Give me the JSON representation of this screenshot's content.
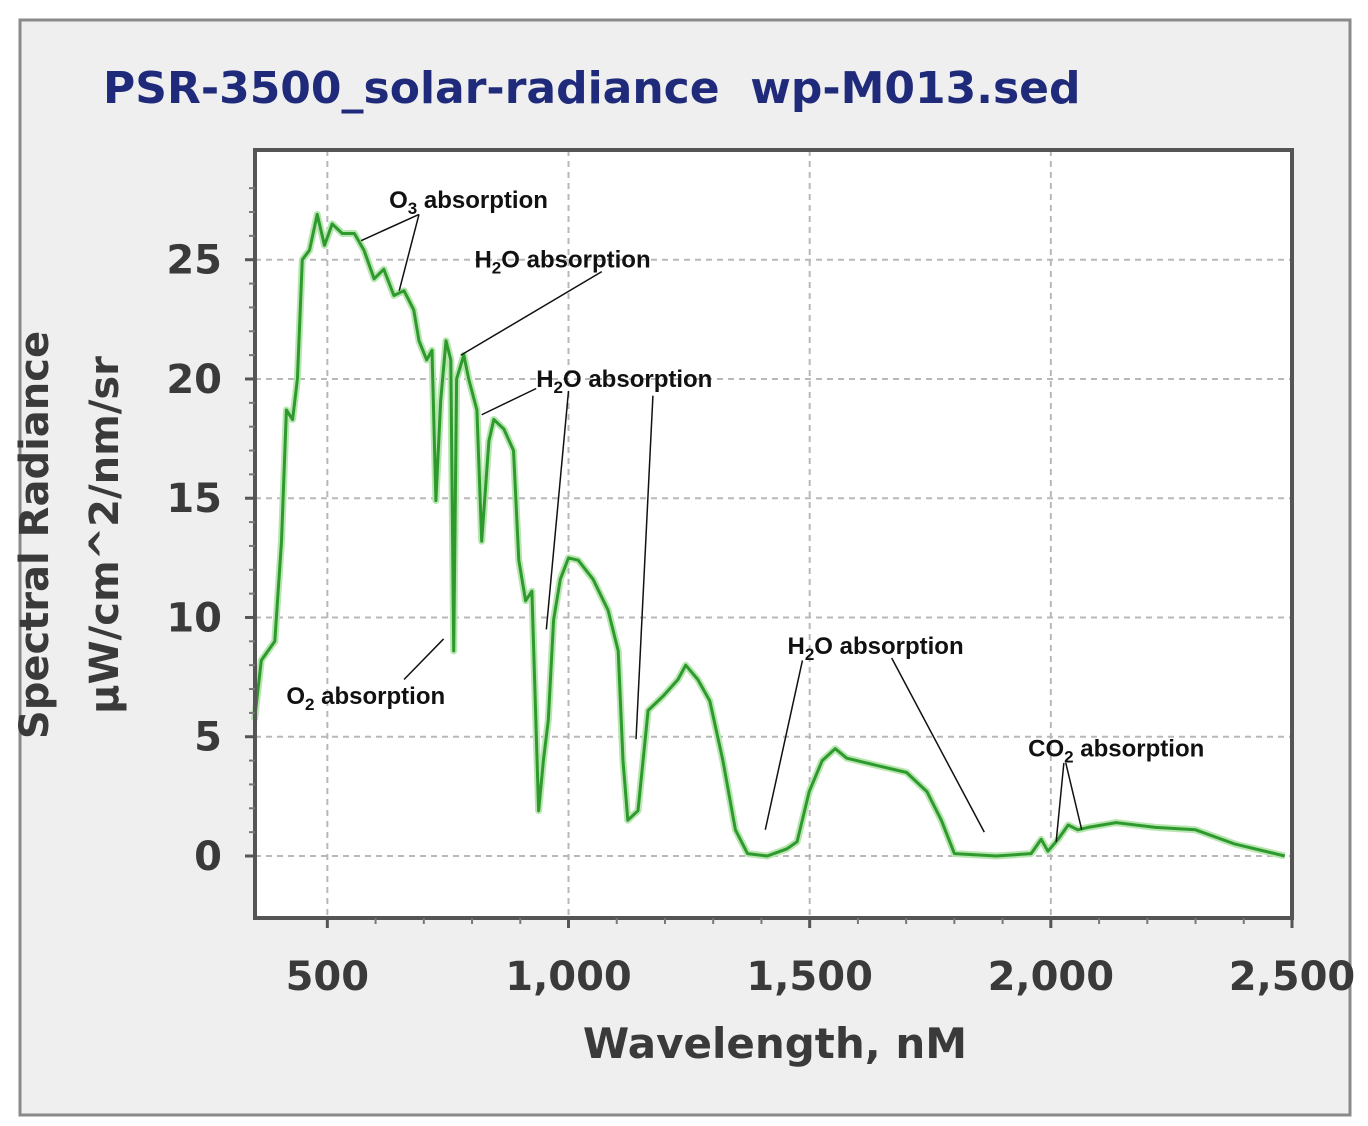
{
  "chart_data": {
    "type": "line",
    "title": "PSR-3500_solar-radiance  wp-M013.sed",
    "xlabel": "Wavelength, nM",
    "ylabel_lines": [
      "Spectral Radiance",
      "µW/cm^2/nm/sr"
    ],
    "xlim": [
      350,
      2500
    ],
    "ylim": [
      -2.6,
      29.6
    ],
    "x_ticks": [
      500,
      1000,
      1500,
      2000,
      2500
    ],
    "x_tick_labels": [
      "500",
      "1,000",
      "1,500",
      "2,000",
      "2,500"
    ],
    "y_ticks": [
      0,
      5,
      10,
      15,
      20,
      25
    ],
    "y_tick_labels": [
      "0",
      "5",
      "10",
      "15",
      "20",
      "25"
    ],
    "grid": true,
    "colors": {
      "line": "#2e9a2e",
      "title": "#1f2a7a",
      "frame": "#555555",
      "grid": "#b8b8b8",
      "background": "#efefef"
    },
    "series": [
      {
        "x": [
          349,
          363,
          391,
          405,
          415,
          428,
          438,
          448,
          463,
          479,
          494,
          510,
          531,
          556,
          576,
          597,
          617,
          638,
          659,
          679,
          690,
          706,
          717,
          725,
          735,
          746,
          756,
          762,
          768,
          783,
          793,
          810,
          820,
          835,
          845,
          866,
          886,
          897,
          911,
          924,
          938,
          948,
          958,
          969,
          983,
          1000,
          1020,
          1051,
          1082,
          1103,
          1113,
          1123,
          1144,
          1165,
          1196,
          1227,
          1243,
          1268,
          1293,
          1320,
          1346,
          1371,
          1412,
          1453,
          1474,
          1499,
          1526,
          1553,
          1577,
          1639,
          1701,
          1743,
          1773,
          1800,
          1887,
          1959,
          1980,
          1994,
          2015,
          2036,
          2056,
          2077,
          2135,
          2217,
          2300,
          2382,
          2485
        ],
        "y": [
          5.7,
          8.2,
          9.0,
          13.2,
          18.7,
          18.3,
          20.0,
          25.0,
          25.4,
          26.9,
          25.6,
          26.5,
          26.1,
          26.1,
          25.4,
          24.2,
          24.6,
          23.5,
          23.7,
          22.9,
          21.6,
          20.8,
          21.2,
          14.9,
          19.1,
          21.6,
          20.8,
          8.6,
          20.0,
          21.0,
          20.0,
          18.7,
          13.2,
          17.4,
          18.3,
          17.9,
          17.0,
          12.4,
          10.7,
          11.1,
          1.9,
          4.0,
          5.7,
          9.9,
          11.6,
          12.5,
          12.4,
          11.6,
          10.3,
          8.6,
          4.0,
          1.5,
          1.9,
          6.1,
          6.7,
          7.4,
          8.0,
          7.4,
          6.5,
          4.0,
          1.1,
          0.1,
          0.0,
          0.3,
          0.6,
          2.7,
          4.0,
          4.5,
          4.1,
          3.8,
          3.5,
          2.7,
          1.5,
          0.1,
          0.0,
          0.1,
          0.7,
          0.2,
          0.7,
          1.3,
          1.1,
          1.2,
          1.4,
          1.2,
          1.1,
          0.5,
          0.0
        ]
      }
    ],
    "annotations": [
      {
        "main": "O",
        "sub": "3",
        "tail": " absorption",
        "at": [
          628,
          27.5
        ],
        "pointers": [
          [
            [
              690,
              26.9
            ],
            [
              570,
              25.8
            ]
          ],
          [
            [
              690,
              26.9
            ],
            [
              649,
              23.7
            ]
          ]
        ]
      },
      {
        "main": "H",
        "sub": "2",
        "tail": "O absorption",
        "at": [
          805,
          25.0
        ],
        "pointers": [
          [
            [
              1069,
              24.5
            ],
            [
              777,
              21.0
            ]
          ]
        ]
      },
      {
        "main": "H",
        "sub": "2",
        "tail": "O absorption",
        "at": [
          933,
          20.0
        ],
        "pointers": [
          [
            [
              933,
              19.6
            ],
            [
              820,
              18.5
            ]
          ],
          [
            [
              1000,
              19.5
            ],
            [
              954,
              9.5
            ]
          ],
          [
            [
              1175,
              19.3
            ],
            [
              1140,
              4.9
            ]
          ]
        ]
      },
      {
        "main": "H",
        "sub": "2",
        "tail": "O absorption",
        "at": [
          1454,
          8.8
        ],
        "pointers": [
          [
            [
              1485,
              8.2
            ],
            [
              1408,
              1.1
            ]
          ],
          [
            [
              1670,
              8.3
            ],
            [
              1862,
              1.0
            ]
          ]
        ]
      },
      {
        "main": "CO",
        "sub": "2",
        "tail": " absorption",
        "at": [
          1953,
          4.5
        ],
        "pointers": [
          [
            [
              2027,
              3.9
            ],
            [
              2011,
              0.6
            ]
          ],
          [
            [
              2031,
              3.9
            ],
            [
              2064,
              1.1
            ]
          ]
        ]
      },
      {
        "main": "O",
        "sub": "2",
        "tail": " absorption",
        "at": [
          415,
          6.7
        ],
        "pointers": [
          [
            [
              659,
              7.4
            ],
            [
              741,
              9.1
            ]
          ]
        ]
      }
    ]
  }
}
